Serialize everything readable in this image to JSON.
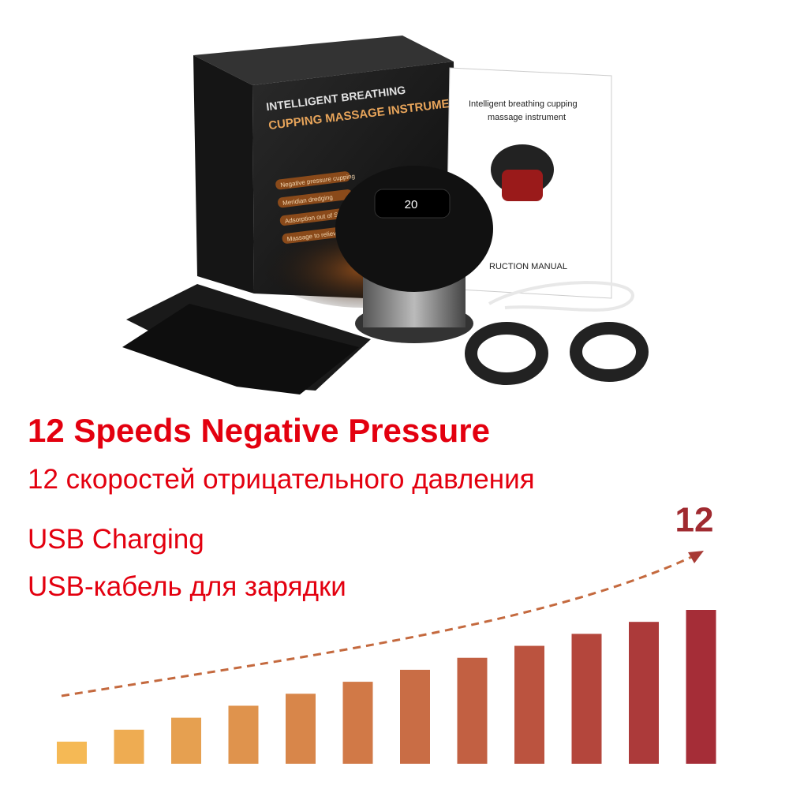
{
  "product_image": {
    "box_title": [
      "INTELLIGENT BREATHING",
      "CUPPING MASSAGE INSTRUMENT"
    ],
    "box_features": [
      "Negative pressure cupping",
      "Meridian dredging",
      "Adsorption out of Sha",
      "Massage to relieve fatigue"
    ],
    "manual_title": [
      "Intelligent breathing cupping",
      "massage instrument"
    ],
    "manual_footer": "RUCTION MANUAL",
    "display": "20"
  },
  "captions": [
    "12 Speeds Negative Pressure",
    "12 скоростей отрицательного давления",
    "USB Charging",
    "USB-кабель для зарядки"
  ],
  "speed_graphic": {
    "label": "12"
  }
}
